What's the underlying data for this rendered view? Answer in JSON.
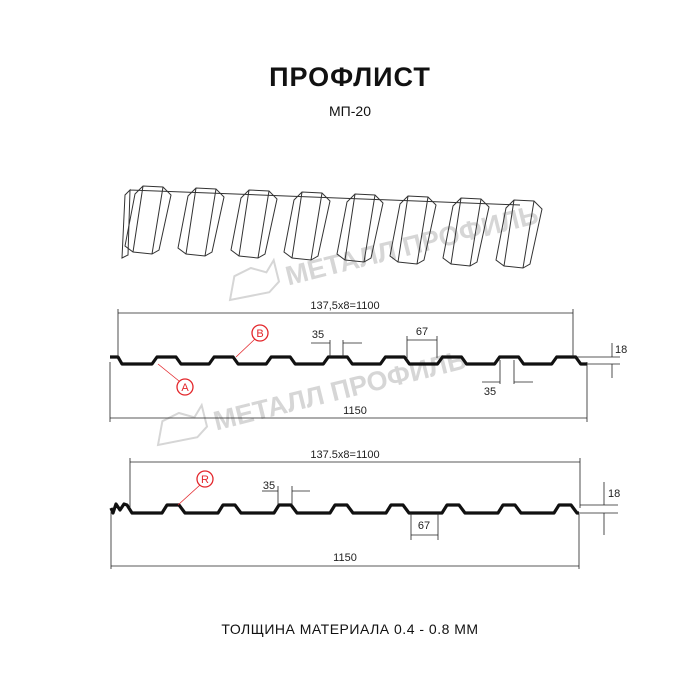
{
  "header": {
    "title": "ПРОФЛИСТ",
    "subtitle": "МП-20"
  },
  "watermark": "МЕТАЛЛ ПРОФИЛЬ",
  "profile_top": {
    "pitch_label": "137,5x8=1100",
    "width_label": "1150",
    "crest_label": "35",
    "valley_label": "67",
    "bottom_label": "35",
    "height_label": "18",
    "marker_a": "A",
    "marker_b": "B"
  },
  "profile_bottom": {
    "pitch_label": "137.5x8=1100",
    "width_label": "1150",
    "crest_label": "35",
    "valley_label": "67",
    "height_label": "18",
    "marker_r": "R"
  },
  "footer": "ТОЛЩИНА МАТЕРИАЛА 0.4 - 0.8 ММ",
  "colors": {
    "profile": "#111111",
    "marker": "#e3262b",
    "watermark": "#d6d6d6"
  }
}
